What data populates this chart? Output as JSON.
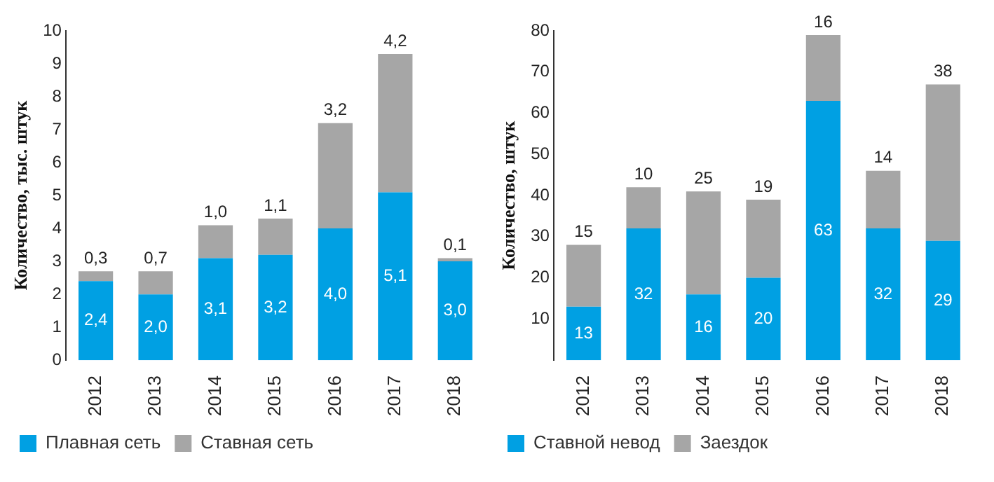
{
  "chart_data": [
    {
      "type": "bar",
      "stacked": true,
      "ylabel": "Количество, тыс. штук",
      "categories": [
        "2012",
        "2013",
        "2014",
        "2015",
        "2016",
        "2017",
        "2018"
      ],
      "ylim": [
        0,
        10
      ],
      "yticks": [
        0,
        1,
        2,
        3,
        4,
        5,
        6,
        7,
        8,
        9,
        10
      ],
      "grid": false,
      "legend": "bottom",
      "series": [
        {
          "name": "Плавная сеть",
          "color": "#00a0e3",
          "values": [
            2.4,
            2.0,
            3.1,
            3.2,
            4.0,
            5.1,
            3.0
          ],
          "value_labels": [
            "2,4",
            "2,0",
            "3,1",
            "3,2",
            "4,0",
            "5,1",
            "3,0"
          ]
        },
        {
          "name": "Ставная сеть",
          "color": "#a6a6a6",
          "values": [
            0.3,
            0.7,
            1.0,
            1.1,
            3.2,
            4.2,
            0.1
          ],
          "value_labels": [
            "0,3",
            "0,7",
            "1,0",
            "1,1",
            "3,2",
            "4,2",
            "0,1"
          ]
        }
      ]
    },
    {
      "type": "bar",
      "stacked": true,
      "ylabel": "Количество, штук",
      "categories": [
        "2012",
        "2013",
        "2014",
        "2015",
        "2016",
        "2017",
        "2018"
      ],
      "ylim": [
        0,
        80
      ],
      "yticks": [
        10,
        20,
        30,
        40,
        50,
        60,
        70,
        80
      ],
      "grid": false,
      "legend": "bottom",
      "series": [
        {
          "name": "Ставной невод",
          "color": "#00a0e3",
          "values": [
            13,
            32,
            16,
            20,
            63,
            32,
            29
          ],
          "value_labels": [
            "13",
            "32",
            "16",
            "20",
            "63",
            "32",
            "29"
          ]
        },
        {
          "name": "Заездок",
          "color": "#a6a6a6",
          "values": [
            15,
            10,
            25,
            19,
            16,
            14,
            38
          ],
          "value_labels": [
            "15",
            "10",
            "25",
            "19",
            "16",
            "14",
            "38"
          ]
        }
      ]
    }
  ]
}
